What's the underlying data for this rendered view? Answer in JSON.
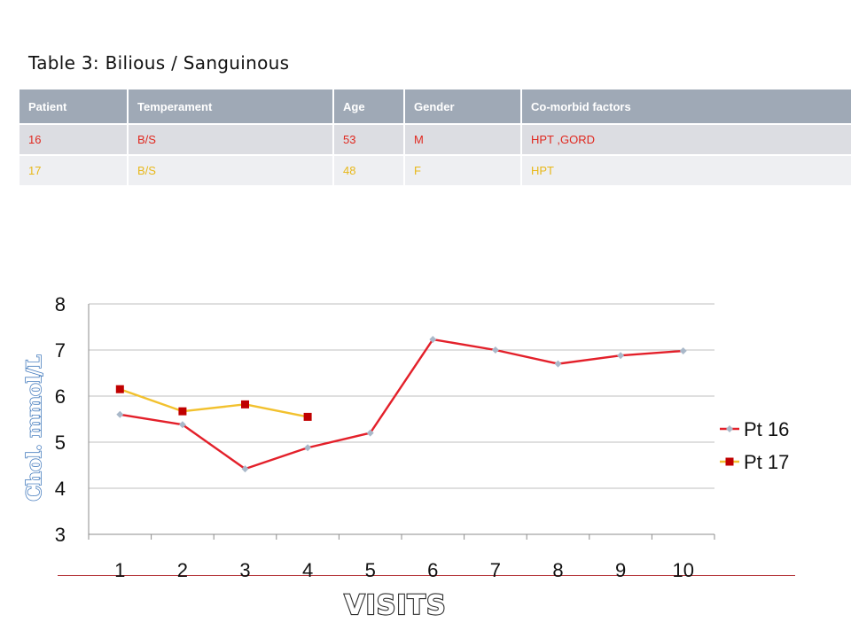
{
  "slide": {
    "title": "Table 3: Bilious / Sanguinous"
  },
  "table": {
    "headers": [
      "Patient",
      "Temperament",
      "Age",
      "Gender",
      "Co-morbid factors"
    ],
    "rows": [
      [
        "16",
        "B/S",
        "53",
        "M",
        "HPT ,GORD"
      ],
      [
        "17",
        "B/S",
        "48",
        "F",
        "HPT"
      ]
    ],
    "colors": {
      "header_bg": "#9fa9b6",
      "row16_text": "#e0281f",
      "row17_text": "#e8b81a"
    }
  },
  "chart_data": {
    "type": "line",
    "title": "",
    "xlabel": "VISITS",
    "ylabel": "Chol. mmol/L",
    "categories": [
      "1",
      "2",
      "3",
      "4",
      "5",
      "6",
      "7",
      "8",
      "9",
      "10"
    ],
    "ylim": [
      3,
      8
    ],
    "yticks": [
      "3",
      "4",
      "5",
      "6",
      "7",
      "8"
    ],
    "grid": true,
    "legend_position": "right",
    "series": [
      {
        "name": "Pt 16",
        "color": "#e3202a",
        "marker": "diamond",
        "marker_color": "#a9b8c9",
        "values": [
          5.6,
          5.38,
          4.42,
          4.88,
          5.2,
          7.23,
          7.0,
          6.7,
          6.88,
          6.98
        ]
      },
      {
        "name": "Pt 17",
        "color": "#f2c12e",
        "marker": "square",
        "marker_color": "#c00000",
        "values": [
          6.15,
          5.67,
          5.82,
          5.55,
          null,
          null,
          null,
          null,
          null,
          null
        ]
      }
    ]
  }
}
